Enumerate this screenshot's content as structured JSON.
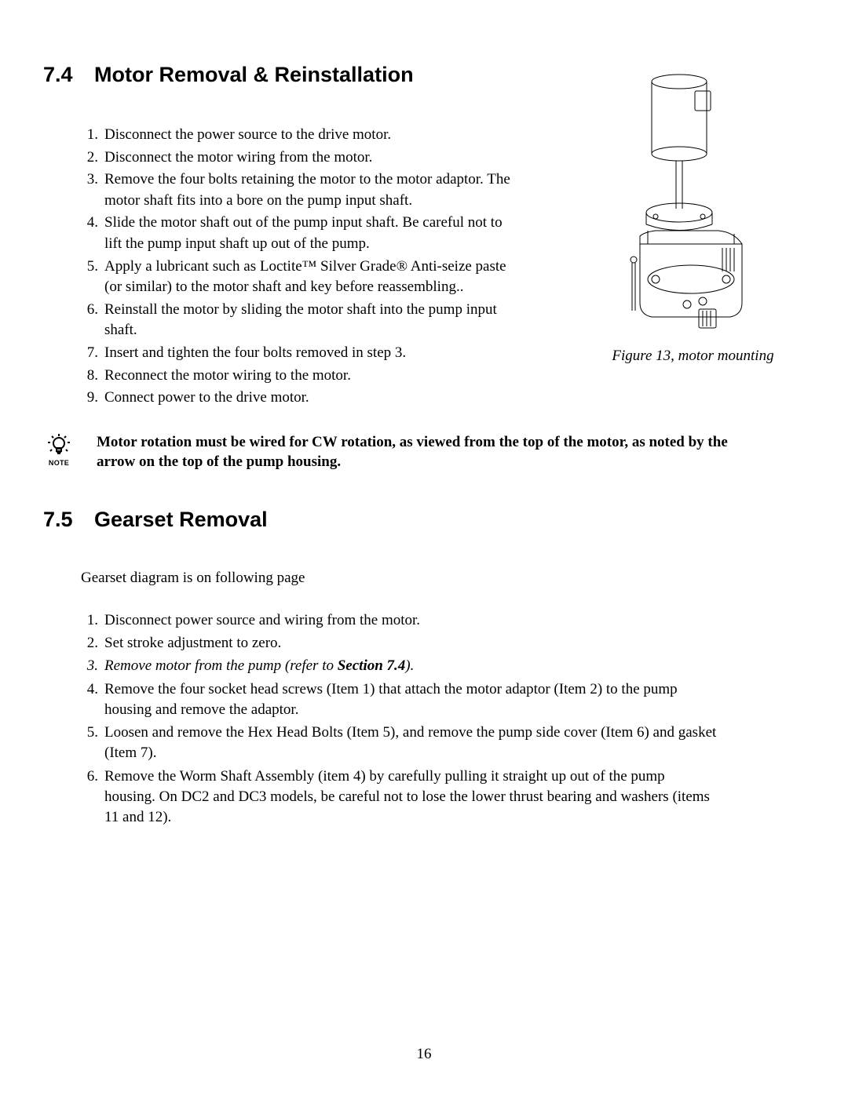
{
  "section74": {
    "number": "7.4",
    "title": "Motor Removal & Reinstallation",
    "steps": [
      {
        "n": "1.",
        "text": "Disconnect the power source to the drive motor."
      },
      {
        "n": "2.",
        "text": "Disconnect the motor wiring from the motor."
      },
      {
        "n": "3.",
        "text": "Remove the four bolts retaining the motor to the motor adaptor. The motor shaft fits into a bore on the pump input shaft."
      },
      {
        "n": "4.",
        "text": "Slide the motor shaft out of the pump input shaft. Be careful not to lift the pump input shaft up out of the pump."
      },
      {
        "n": "5.",
        "text": "Apply a lubricant such as Loctite™ Silver Grade® Anti-seize paste (or similar) to the motor shaft and key before reassembling.."
      },
      {
        "n": "6.",
        "text": "Reinstall the motor by sliding the motor shaft into the pump input shaft."
      },
      {
        "n": "7.",
        "text": "Insert and tighten the four bolts removed in step 3."
      },
      {
        "n": "8.",
        "text": "Reconnect the motor wiring to the motor."
      },
      {
        "n": "9.",
        "text": "Connect power to the drive motor."
      }
    ]
  },
  "figure": {
    "caption": "Figure 13, motor mounting"
  },
  "note": {
    "label": "NOTE",
    "text": "Motor rotation must be wired for CW rotation, as viewed from the top of the motor, as noted by the arrow on the top of the pump housing."
  },
  "section75": {
    "number": "7.5",
    "title": "Gearset Removal",
    "intro": "Gearset diagram is on following page",
    "steps": [
      {
        "n": "1.",
        "text": "Disconnect power source and wiring from the motor."
      },
      {
        "n": "2.",
        "text": "Set stroke adjustment to zero."
      },
      {
        "n": "3.",
        "italic": true,
        "pre": "Remove motor from the pump (refer to ",
        "ref": "Section 7.4",
        "post": ")."
      },
      {
        "n": "4.",
        "text": "Remove the four socket head screws (Item 1) that attach the motor adaptor (Item 2) to the pump housing and remove the adaptor."
      },
      {
        "n": "5.",
        "text": "Loosen and remove the Hex Head Bolts (Item 5), and remove the pump side cover (Item 6) and gasket (Item 7)."
      },
      {
        "n": "6.",
        "text": "Remove the Worm Shaft Assembly (item 4) by carefully pulling it straight up out of the pump housing.  On DC2 and DC3 models, be careful not to lose the lower thrust bearing and washers (items 11 and 12)."
      }
    ]
  },
  "pageNumber": "16"
}
